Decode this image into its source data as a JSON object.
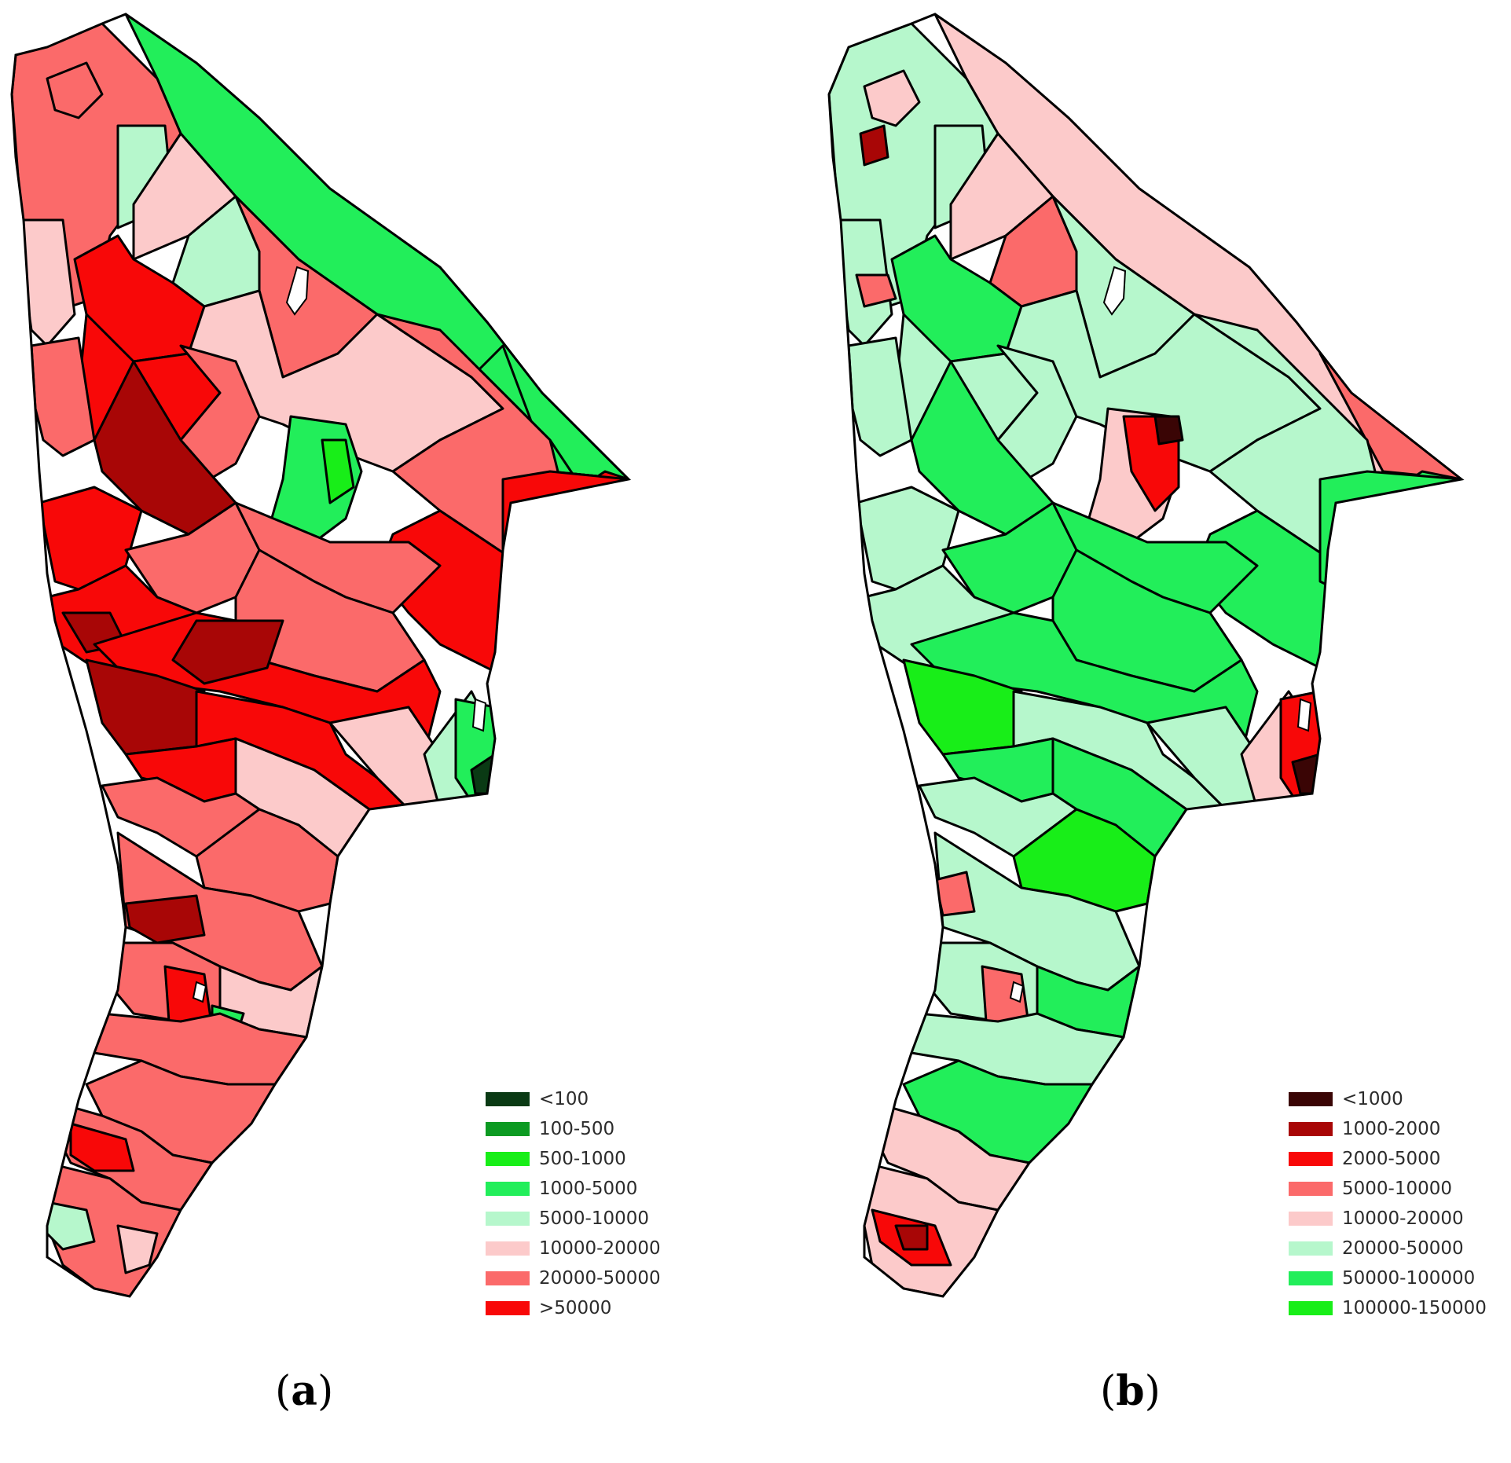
{
  "panel_a": {
    "caption_open": "(",
    "caption_letter": "a",
    "caption_close": ")",
    "legend": [
      {
        "label": "<100",
        "color": "#0a3a14"
      },
      {
        "label": "100-500",
        "color": "#0c9a22"
      },
      {
        "label": "500-1000",
        "color": "#18ee18"
      },
      {
        "label": "1000-5000",
        "color": "#22ee5a"
      },
      {
        "label": "5000-10000",
        "color": "#b6f7cc"
      },
      {
        "label": "10000-20000",
        "color": "#fccaca"
      },
      {
        "label": "20000-50000",
        "color": "#fb6a6a"
      },
      {
        "label": ">50000",
        "color": "#f80808"
      }
    ]
  },
  "panel_b": {
    "caption_open": "(",
    "caption_letter": "b",
    "caption_close": ")",
    "legend": [
      {
        "label": "<1000",
        "color": "#3a0505"
      },
      {
        "label": "1000-2000",
        "color": "#a80606"
      },
      {
        "label": "2000-5000",
        "color": "#f80808"
      },
      {
        "label": "5000-10000",
        "color": "#fb6a6a"
      },
      {
        "label": "10000-20000",
        "color": "#fccaca"
      },
      {
        "label": "20000-50000",
        "color": "#b6f7cc"
      },
      {
        "label": "50000-100000",
        "color": "#22ee5a"
      },
      {
        "label": "100000-150000",
        "color": "#18ee18"
      }
    ]
  }
}
